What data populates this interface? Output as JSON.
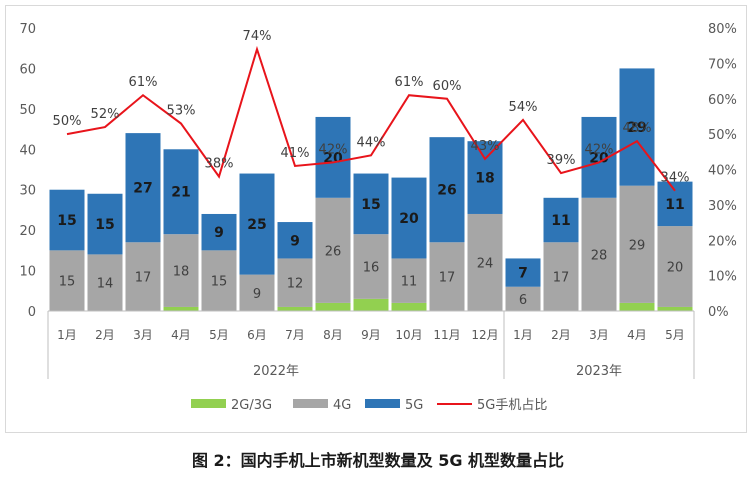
{
  "chart_data": {
    "type": "bar",
    "stacked": true,
    "categories": [
      "1月",
      "2月",
      "3月",
      "4月",
      "5月",
      "6月",
      "7月",
      "8月",
      "9月",
      "10月",
      "11月",
      "12月",
      "1月",
      "2月",
      "3月",
      "4月",
      "5月"
    ],
    "groups": [
      {
        "label": "2022年",
        "count": 12
      },
      {
        "label": "2023年",
        "count": 5
      }
    ],
    "series": [
      {
        "name": "2G/3G",
        "color": "#92d050",
        "values": [
          0,
          0,
          0,
          1,
          0,
          0,
          1,
          2,
          3,
          2,
          0,
          0,
          0,
          0,
          0,
          2,
          1
        ]
      },
      {
        "name": "4G",
        "color": "#a6a6a6",
        "values": [
          15,
          14,
          17,
          18,
          15,
          9,
          12,
          26,
          16,
          11,
          17,
          24,
          6,
          17,
          28,
          29,
          20
        ]
      },
      {
        "name": "5G",
        "color": "#2e75b6",
        "values": [
          15,
          15,
          27,
          21,
          9,
          25,
          9,
          20,
          15,
          20,
          26,
          18,
          7,
          11,
          20,
          29,
          11
        ]
      }
    ],
    "line": {
      "name": "5G手机占比",
      "color": "#e8141b",
      "values": [
        50,
        52,
        61,
        53,
        38,
        74,
        41,
        42,
        44,
        61,
        60,
        43,
        54,
        39,
        42,
        48,
        34
      ],
      "labels": [
        "50%",
        "52%",
        "61%",
        "53%",
        "38%",
        "74%",
        "41%",
        "42%",
        "44%",
        "61%",
        "60%",
        "43%",
        "54%",
        "39%",
        "42%",
        "48%",
        "34%"
      ]
    },
    "ylim": [
      0,
      70
    ],
    "yticks": [
      "0",
      "10",
      "20",
      "30",
      "40",
      "50",
      "60",
      "70"
    ],
    "y2lim": [
      0,
      80
    ],
    "y2ticks": [
      "0%",
      "10%",
      "20%",
      "30%",
      "40%",
      "50%",
      "60%",
      "70%",
      "80%"
    ],
    "grid": false,
    "legend_position": "bottom",
    "caption": "图 2：国内手机上市新机型数量及 5G 机型数量占比"
  }
}
